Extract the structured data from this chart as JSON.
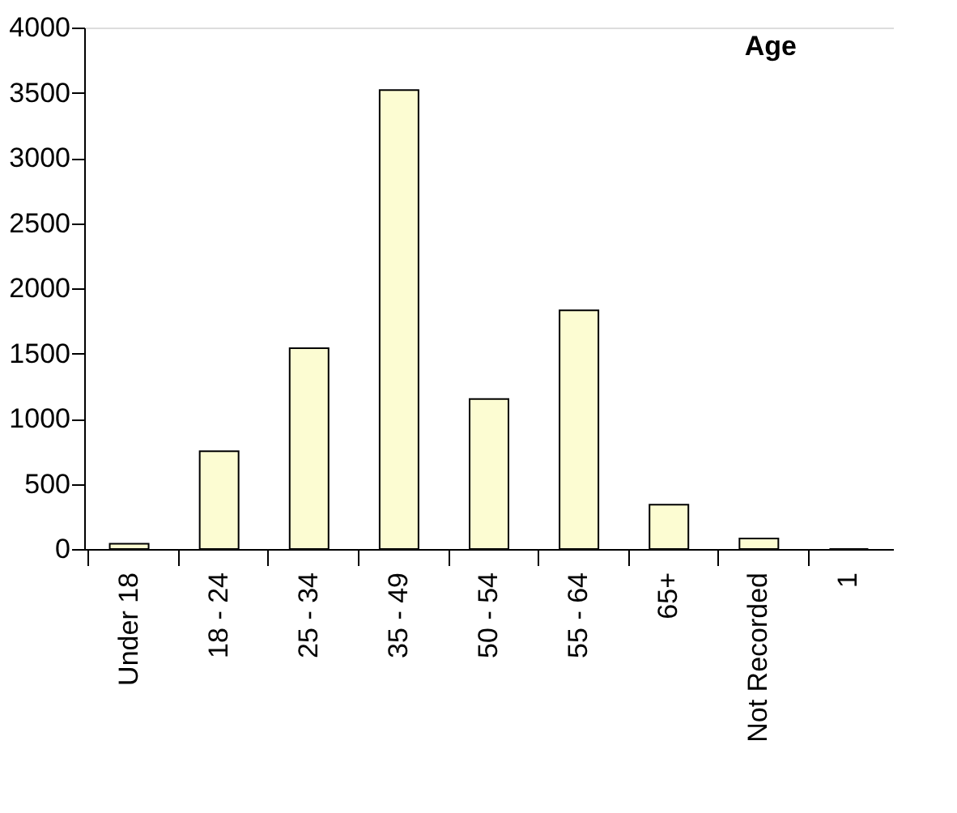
{
  "chart_data": {
    "type": "bar",
    "title": "Age",
    "categories": [
      "Under 18",
      "18 - 24",
      "25 - 34",
      "35 - 49",
      "50 - 54",
      "55 - 64",
      "65+",
      "Not Recorded",
      "1"
    ],
    "values": [
      40,
      750,
      1540,
      3520,
      1150,
      1830,
      340,
      80,
      0
    ],
    "color": "#fcfcd2",
    "ylim": [
      0,
      4000
    ],
    "yticks": [
      0,
      500,
      1000,
      1500,
      2000,
      2500,
      3000,
      3500,
      4000
    ],
    "grid": false
  }
}
